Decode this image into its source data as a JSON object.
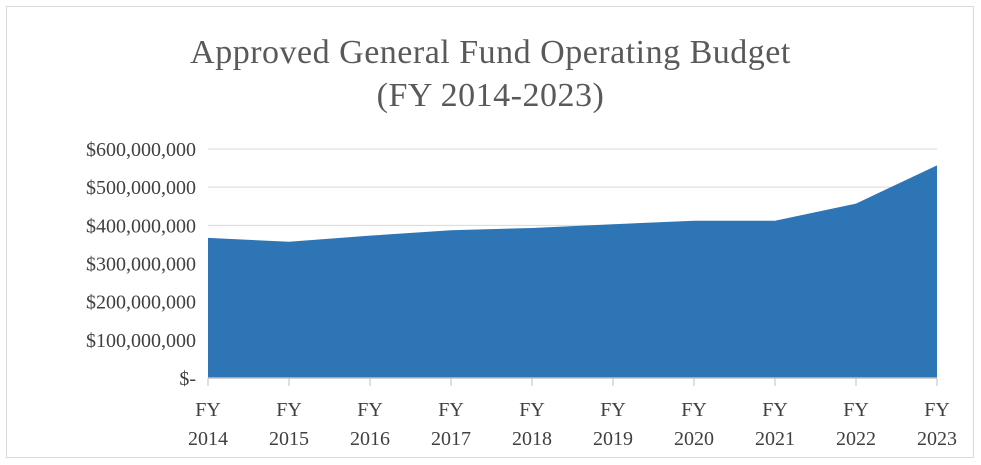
{
  "title_line1": "Approved General Fund Operating Budget",
  "title_line2": "(FY 2014-2023)",
  "colors": {
    "area": "#2e75b6",
    "grid": "#d9d9d9",
    "axis": "#bfbfbf",
    "text": "#404040"
  },
  "chart_data": {
    "type": "area",
    "title": "Approved General Fund Operating Budget (FY 2014-2023)",
    "categories": [
      [
        "FY",
        "2014"
      ],
      [
        "FY",
        "2015"
      ],
      [
        "FY",
        "2016"
      ],
      [
        "FY",
        "2017"
      ],
      [
        "FY",
        "2018"
      ],
      [
        "FY",
        "2019"
      ],
      [
        "FY",
        "2020"
      ],
      [
        "FY",
        "2021"
      ],
      [
        "FY",
        "2022"
      ],
      [
        "FY",
        "2023"
      ]
    ],
    "series": [
      {
        "values": [
          367000000,
          357000000,
          373000000,
          387000000,
          393000000,
          403000000,
          412000000,
          412000000,
          457000000,
          557000000
        ]
      }
    ],
    "yticks": [
      {
        "value": 600000000,
        "label": "$600,000,000"
      },
      {
        "value": 500000000,
        "label": "$500,000,000"
      },
      {
        "value": 400000000,
        "label": "$400,000,000"
      },
      {
        "value": 300000000,
        "label": "$300,000,000"
      },
      {
        "value": 200000000,
        "label": "$200,000,000"
      },
      {
        "value": 100000000,
        "label": "$100,000,000"
      },
      {
        "value": 0,
        "label": "$-"
      }
    ],
    "ylim": [
      0,
      600000000
    ],
    "xlabel": "",
    "ylabel": "",
    "grid": true,
    "legend": "none"
  }
}
